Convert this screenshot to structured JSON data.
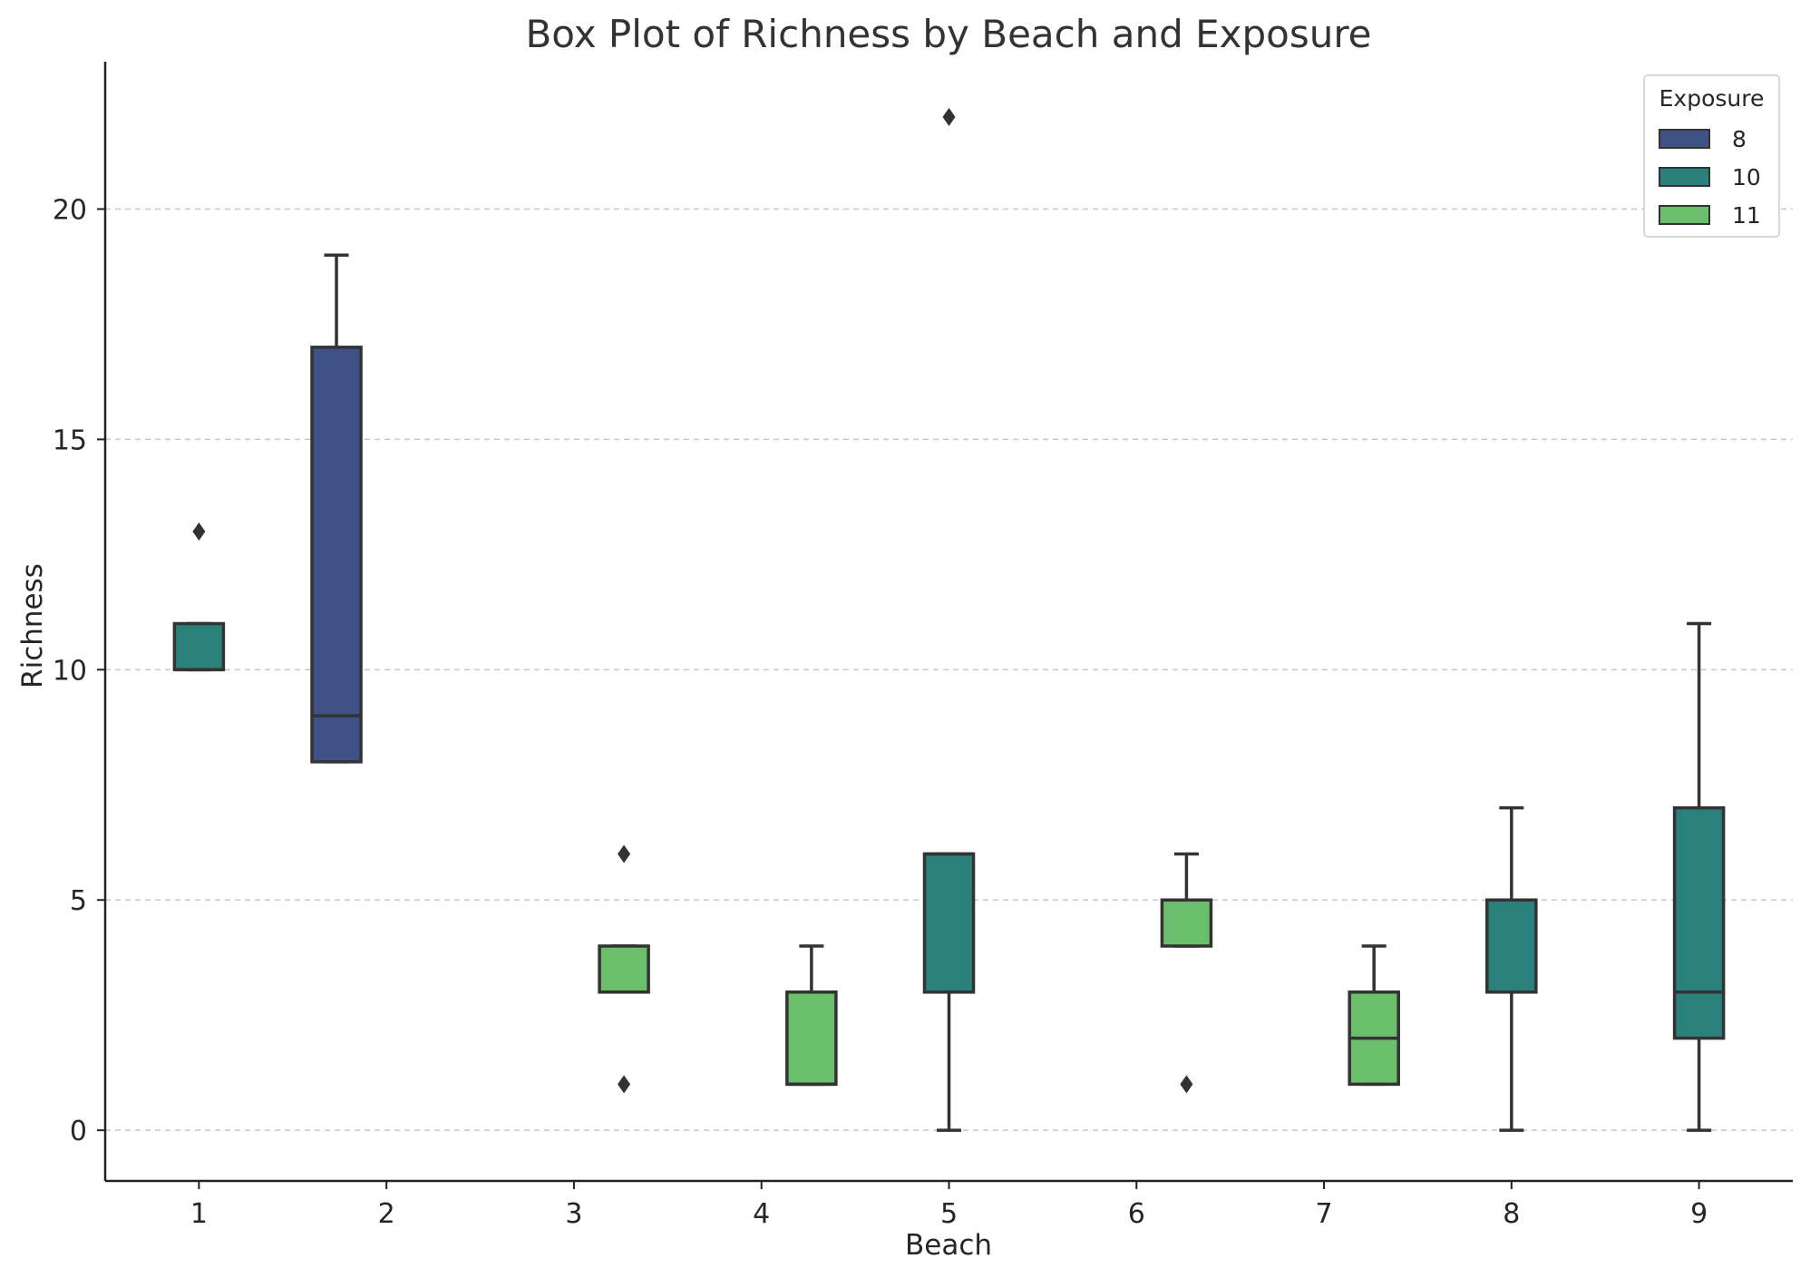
{
  "chart_data": {
    "type": "box",
    "title": "Box Plot of Richness by Beach and Exposure",
    "xlabel": "Beach",
    "ylabel": "Richness",
    "categories": [
      "1",
      "2",
      "3",
      "4",
      "5",
      "6",
      "7",
      "8",
      "9"
    ],
    "ylim": [
      -1.1,
      23.2
    ],
    "yticks": [
      0,
      5,
      10,
      15,
      20
    ],
    "grid": "horizontal dashed",
    "legend": {
      "title": "Exposure",
      "placement": "top-right",
      "entries": [
        {
          "label": "8",
          "color": "#3f5185"
        },
        {
          "label": "10",
          "color": "#2a807a"
        },
        {
          "label": "11",
          "color": "#6bbe6b"
        }
      ]
    },
    "hue_levels": [
      "8",
      "10",
      "11"
    ],
    "boxes": [
      {
        "beach": "1",
        "exposure": "10",
        "whisker_low": 10,
        "q1": 10,
        "median": 10,
        "q3": 11,
        "whisker_high": 11,
        "outliers": [
          13
        ]
      },
      {
        "beach": "2",
        "exposure": "8",
        "whisker_low": 8,
        "q1": 8,
        "median": 9,
        "q3": 17,
        "whisker_high": 19,
        "outliers": []
      },
      {
        "beach": "3",
        "exposure": "11",
        "whisker_low": 3,
        "q1": 3,
        "median": 3,
        "q3": 4,
        "whisker_high": 4,
        "outliers": [
          6,
          1
        ]
      },
      {
        "beach": "4",
        "exposure": "11",
        "whisker_low": 1,
        "q1": 1,
        "median": 1,
        "q3": 3,
        "whisker_high": 4,
        "outliers": []
      },
      {
        "beach": "5",
        "exposure": "10",
        "whisker_low": 0,
        "q1": 3,
        "median": 6,
        "q3": 6,
        "whisker_high": 6,
        "outliers": [
          22
        ]
      },
      {
        "beach": "6",
        "exposure": "11",
        "whisker_low": 4,
        "q1": 4,
        "median": 5,
        "q3": 5,
        "whisker_high": 6,
        "outliers": [
          1
        ]
      },
      {
        "beach": "7",
        "exposure": "11",
        "whisker_low": 1,
        "q1": 1,
        "median": 2,
        "q3": 3,
        "whisker_high": 4,
        "outliers": []
      },
      {
        "beach": "8",
        "exposure": "10",
        "whisker_low": 0,
        "q1": 3,
        "median": 5,
        "q3": 5,
        "whisker_high": 7,
        "outliers": []
      },
      {
        "beach": "9",
        "exposure": "10",
        "whisker_low": 0,
        "q1": 2,
        "median": 3,
        "q3": 7,
        "whisker_high": 11,
        "outliers": []
      }
    ]
  }
}
